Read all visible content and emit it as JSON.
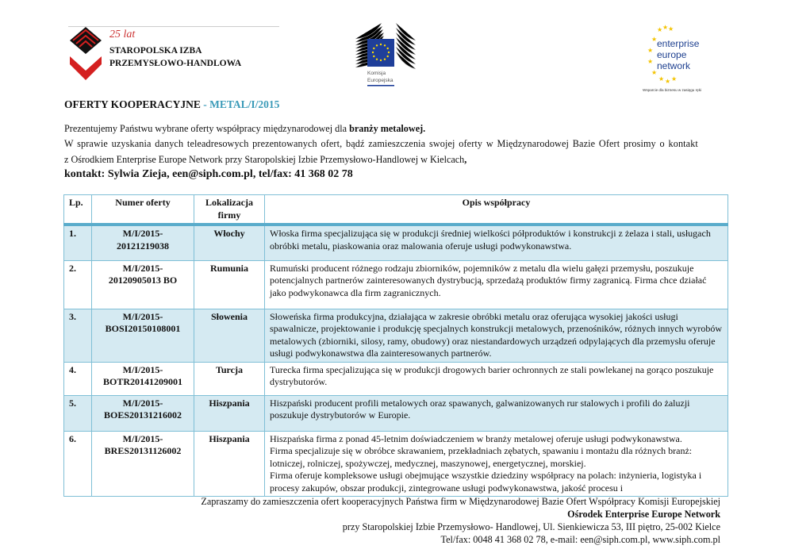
{
  "logos": {
    "chamber": {
      "anniversary": "25 lat",
      "line1": "STAROPOLSKA IZBA",
      "line2": "PRZEMYSŁOWO-HANDLOWA"
    },
    "commission": {
      "line1": "Komisja",
      "line2": "Europejska"
    },
    "een": {
      "line1": "enterprise",
      "line2": "europe",
      "line3": "network",
      "tagline": "Wsparcie dla biznesu w zasięgu ręki"
    }
  },
  "title": {
    "main": "OFERTY KOOPERACYJNE",
    "code": " - METAL/I/2015"
  },
  "intro": {
    "line1_start": "Prezentujemy Państwu wybrane oferty współpracy międzynarodowej dla ",
    "line1_bold": "branży metalowej.",
    "line2": "W sprawie uzyskania danych teleadresowych prezentowanych ofert, bądź zamieszczenia swojej oferty w Międzynarodowej Bazie Ofert prosimy o kontakt",
    "line3": "z Ośrodkiem Enterprise Europe Network przy Staropolskiej Izbie Przemysłowo-Handlowej w Kielcach",
    "line3_end": ",",
    "contact": "kontakt: Sylwia Zieja, een@siph.com.pl, tel/fax: 41 368 02 78"
  },
  "table": {
    "headers": {
      "lp": "Lp.",
      "number": "Numer oferty",
      "location": "Lokalizacja firmy",
      "description": "Opis współpracy"
    },
    "rows": [
      {
        "lp": "1.",
        "number": "M/I/2015-\n20121219038",
        "location": "Włochy",
        "description": "Włoska firma specjalizująca się w produkcji średniej wielkości półproduktów i konstrukcji z żelaza i stali, usługach obróbki metalu, piaskowania oraz malowania oferuje usługi podwykonawstwa."
      },
      {
        "lp": "2.",
        "number": "M/I/2015-\n20120905013 BO",
        "location": "Rumunia",
        "description": "Rumuński producent różnego rodzaju zbiorników, pojemników z metalu dla wielu gałęzi przemysłu, poszukuje potencjalnych partnerów zainteresowanych dystrybucją, sprzedażą produktów firmy zagranicą. Firma chce działać jako podwykonawca dla firm zagranicznych."
      },
      {
        "lp": "3.",
        "number": "M/I/2015-\nBOSI20150108001",
        "location": "Słowenia",
        "description": "Słoweńska firma produkcyjna, działająca w zakresie obróbki metalu oraz oferująca wysokiej jakości usługi spawalnicze, projektowanie i produkcję specjalnych konstrukcji metalowych, przenośników, różnych innych wyrobów metalowych (zbiorniki, silosy, ramy, obudowy) oraz niestandardowych urządzeń odpylających dla przemysłu oferuje usługi podwykonawstwa dla zainteresowanych partnerów."
      },
      {
        "lp": "4.",
        "number": "M/I/2015-\nBOTR20141209001",
        "location": "Turcja",
        "description": "Turecka firma specjalizująca się w produkcji drogowych barier ochronnych ze stali powlekanej na gorąco poszukuje dystrybutorów."
      },
      {
        "lp": "5.",
        "number": "M/I/2015-\nBOES20131216002",
        "location": "Hiszpania",
        "description": "Hiszpański producent profili metalowych oraz spawanych, galwanizowanych rur stalowych i profili do żaluzji poszukuje dystrybutorów w Europie."
      },
      {
        "lp": "6.",
        "number": "M/I/2015-\nBRES20131126002",
        "location": "Hiszpania",
        "description": "Hiszpańska firma z ponad 45-letnim doświadczeniem w branży metalowej oferuje usługi podwykonawstwa.\nFirma specjalizuje się w obróbce skrawaniem, przekładniach zębatych, spawaniu i montażu dla różnych branż: lotniczej, rolniczej, spożywczej, medycznej, maszynowej, energetycznej, morskiej.\nFirma oferuje kompleksowe usługi obejmujące wszystkie dziedziny współpracy na polach: inżynieria, logistyka i procesy zakupów, obszar produkcji, zintegrowane usługi podwykonawstwa, jakość procesu i"
      }
    ]
  },
  "footer": {
    "line1": "Zapraszamy do zamieszczenia ofert kooperacyjnych Państwa firm w Międzynarodowej Bazie Ofert Współpracy Komisji Europejskiej",
    "line2": "Ośrodek Enterprise Europe Network",
    "line3": "przy Staropolskiej Izbie Przemysłowo- Handlowej, Ul. Sienkiewicza 53, III piętro, 25-002 Kielce",
    "line4": "Tel/fax: 0048 41 368 02 78, e-mail: een@siph.com.pl, www.siph.com.pl"
  },
  "colors": {
    "accent": "#3a9ab8",
    "row_shade": "#d5eaf2",
    "border": "#7fbfd6",
    "eu_blue": "#1f3f9a",
    "chamber_red": "#d42020"
  }
}
